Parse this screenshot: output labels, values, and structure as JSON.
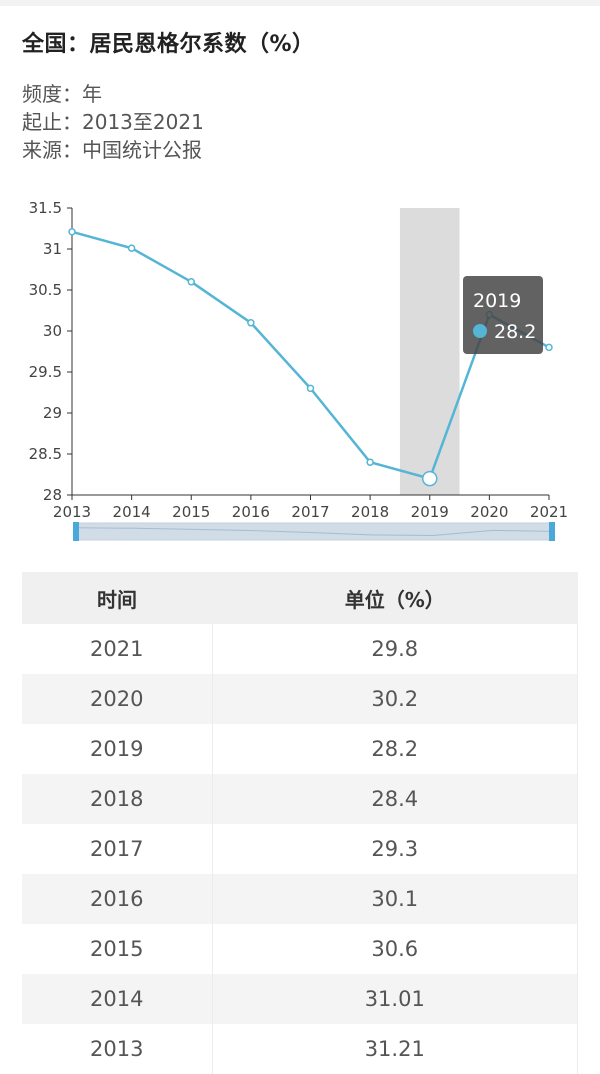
{
  "page": {
    "title": "全国：居民恩格尔系数（%）",
    "frequency": "频度：年",
    "range": "起止：2013至2021",
    "source": "来源：中国统计公报"
  },
  "chart_data": {
    "type": "line",
    "x": [
      "2013",
      "2014",
      "2015",
      "2016",
      "2017",
      "2018",
      "2019",
      "2020",
      "2021"
    ],
    "series": [
      {
        "values": [
          31.21,
          31.01,
          30.6,
          30.1,
          29.3,
          28.4,
          28.2,
          30.2,
          29.8
        ]
      }
    ],
    "ylim": [
      28,
      31.5
    ],
    "yticks": [
      28,
      28.5,
      29,
      29.5,
      30,
      30.5,
      31,
      31.5
    ],
    "ytick_labels": [
      "28",
      "28.5",
      "29",
      "29.5",
      "30",
      "30.5",
      "31",
      "31.5"
    ],
    "color": "#55b5d5",
    "highlight_index": 6,
    "tooltip": {
      "x": "2019",
      "value": "28.2"
    }
  },
  "table": {
    "headers": [
      "时间",
      "单位（%）"
    ],
    "rows": [
      [
        "2021",
        "29.8"
      ],
      [
        "2020",
        "30.2"
      ],
      [
        "2019",
        "28.2"
      ],
      [
        "2018",
        "28.4"
      ],
      [
        "2017",
        "29.3"
      ],
      [
        "2016",
        "30.1"
      ],
      [
        "2015",
        "30.6"
      ],
      [
        "2014",
        "31.01"
      ],
      [
        "2013",
        "31.21"
      ]
    ]
  }
}
